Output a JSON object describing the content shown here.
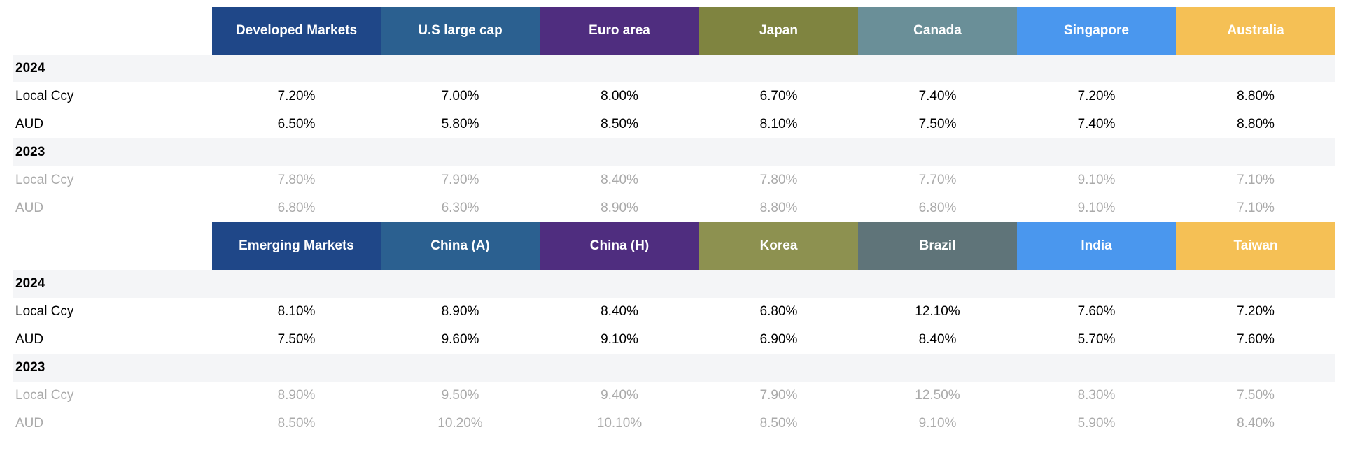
{
  "sections": [
    {
      "header": [
        "Developed Markets",
        "U.S large cap",
        "Euro area",
        "Japan",
        "Canada",
        "Singapore",
        "Australia"
      ],
      "colors": [
        "#1f4788",
        "#2b6090",
        "#4f2d7f",
        "#7f8440",
        "#6a8f98",
        "#4a97ee",
        "#f5c055"
      ],
      "groups": [
        {
          "year": "2024",
          "rows": [
            {
              "label": "Local Ccy",
              "values": [
                "7.20%",
                "7.00%",
                "8.00%",
                "6.70%",
                "7.40%",
                "7.20%",
                "8.80%"
              ]
            },
            {
              "label": "AUD",
              "values": [
                "6.50%",
                "5.80%",
                "8.50%",
                "8.10%",
                "7.50%",
                "7.40%",
                "8.80%"
              ]
            }
          ]
        },
        {
          "year": "2023",
          "rows": [
            {
              "label": "Local Ccy",
              "values": [
                "7.80%",
                "7.90%",
                "8.40%",
                "7.80%",
                "7.70%",
                "9.10%",
                "7.10%"
              ]
            },
            {
              "label": "AUD",
              "values": [
                "6.80%",
                "6.30%",
                "8.90%",
                "8.80%",
                "6.80%",
                "9.10%",
                "7.10%"
              ]
            }
          ]
        }
      ]
    },
    {
      "header": [
        "Emerging Markets",
        "China (A)",
        "China (H)",
        "Korea",
        "Brazil",
        "India",
        "Taiwan"
      ],
      "colors": [
        "#1f4788",
        "#2b6090",
        "#4f2d7f",
        "#8d9150",
        "#5f7479",
        "#4a97ee",
        "#f5c055"
      ],
      "groups": [
        {
          "year": "2024",
          "rows": [
            {
              "label": "Local Ccy",
              "values": [
                "8.10%",
                "8.90%",
                "8.40%",
                "6.80%",
                "12.10%",
                "7.60%",
                "7.20%"
              ]
            },
            {
              "label": "AUD",
              "values": [
                "7.50%",
                "9.60%",
                "9.10%",
                "6.90%",
                "8.40%",
                "5.70%",
                "7.60%"
              ]
            }
          ]
        },
        {
          "year": "2023",
          "rows": [
            {
              "label": "Local Ccy",
              "values": [
                "8.90%",
                "9.50%",
                "9.40%",
                "7.90%",
                "12.50%",
                "8.30%",
                "7.50%"
              ]
            },
            {
              "label": "AUD",
              "values": [
                "8.50%",
                "10.20%",
                "10.10%",
                "8.50%",
                "9.10%",
                "5.90%",
                "8.40%"
              ]
            }
          ]
        }
      ]
    }
  ]
}
